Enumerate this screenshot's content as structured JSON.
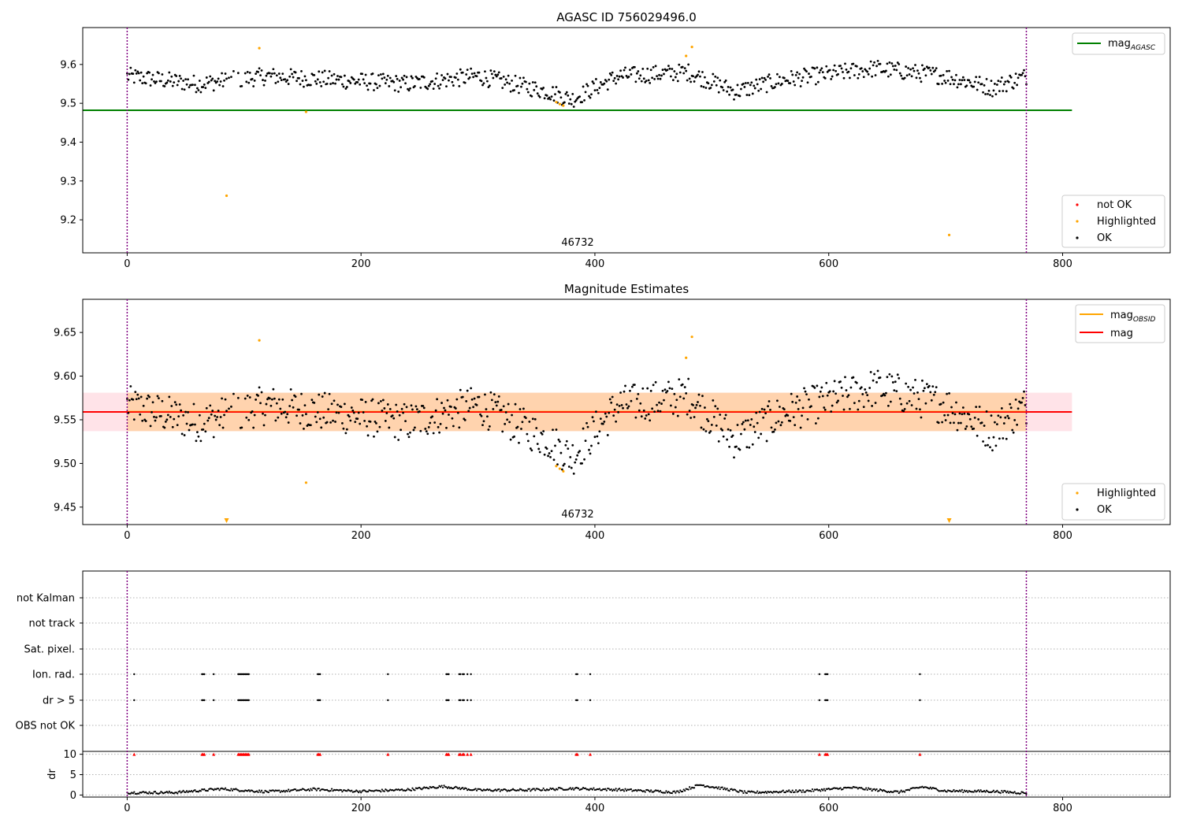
{
  "figure": {
    "agasc_id": "756029496.0",
    "note": "Three stacked panels sharing an x axis (sample index)"
  },
  "chart_data": [
    {
      "type": "scatter",
      "title": "AGASC ID 756029496.0",
      "xlim": [
        -38,
        892
      ],
      "ylim": [
        9.115,
        9.695
      ],
      "xticks": [
        0,
        200,
        400,
        600,
        800
      ],
      "yticks": [
        9.2,
        9.3,
        9.4,
        9.5,
        9.6
      ],
      "grid": false,
      "annotation": "46732",
      "vlines": [
        0,
        769
      ],
      "hlines": [
        {
          "name": "mag_AGASC",
          "y": 9.482,
          "x": [
            -38,
            808
          ],
          "color": "#008000"
        }
      ],
      "highlighted": [
        {
          "x": 85,
          "y": 9.262
        },
        {
          "x": 113,
          "y": 9.642
        },
        {
          "x": 153,
          "y": 9.478
        },
        {
          "x": 367,
          "y": 9.503
        },
        {
          "x": 370,
          "y": 9.498
        },
        {
          "x": 373,
          "y": 9.494
        },
        {
          "x": 478,
          "y": 9.622
        },
        {
          "x": 483,
          "y": 9.645
        },
        {
          "x": 703,
          "y": 9.161
        }
      ],
      "ok_series_segments": [
        {
          "x": [
            0,
            60,
            120,
            180,
            240,
            300,
            360,
            380,
            420,
            480,
            520,
            560,
            640,
            700,
            740,
            769
          ],
          "y": [
            9.57,
            9.55,
            9.57,
            9.56,
            9.55,
            9.57,
            9.53,
            9.51,
            9.57,
            9.58,
            9.53,
            9.56,
            9.59,
            9.57,
            9.54,
            9.57
          ]
        }
      ],
      "legend": {
        "upper_right": [
          "mag_AGASC"
        ],
        "lower_right": [
          "not OK",
          "Highlighted",
          "OK"
        ]
      }
    },
    {
      "type": "scatter",
      "title": "Magnitude Estimates",
      "xlim": [
        -38,
        892
      ],
      "ylim": [
        9.43,
        9.688
      ],
      "xticks": [
        0,
        200,
        400,
        600,
        800
      ],
      "yticks": [
        9.45,
        9.5,
        9.55,
        9.6,
        9.65
      ],
      "grid": false,
      "annotation": "46732",
      "vlines": [
        0,
        769
      ],
      "mag": {
        "y": 9.559,
        "x": [
          -38,
          808
        ],
        "color": "#ff0000"
      },
      "mag_obsid": {
        "y": 9.559,
        "x": [
          0,
          769
        ],
        "color": "#ffa500"
      },
      "bands": [
        {
          "y": [
            9.537,
            9.581
          ],
          "x": [
            -38,
            808
          ],
          "color": "#ffc0cb",
          "opacity": 0.45
        },
        {
          "y": [
            9.537,
            9.581
          ],
          "x": [
            0,
            769
          ],
          "color": "#ffa500",
          "opacity": 0.25
        }
      ],
      "highlighted": [
        {
          "x": 113,
          "y": 9.641
        },
        {
          "x": 153,
          "y": 9.478
        },
        {
          "x": 367,
          "y": 9.497
        },
        {
          "x": 370,
          "y": 9.494
        },
        {
          "x": 373,
          "y": 9.491
        },
        {
          "x": 478,
          "y": 9.621
        },
        {
          "x": 483,
          "y": 9.645
        }
      ],
      "offscale_low": [
        85,
        703
      ],
      "legend": {
        "upper_right": [
          "mag_OBSID",
          "mag"
        ],
        "lower_right": [
          "Highlighted",
          "OK"
        ]
      }
    },
    {
      "type": "scatter",
      "title": "",
      "xlim": [
        -38,
        892
      ],
      "xticks": [
        0,
        200,
        400,
        600,
        800
      ],
      "categories": [
        "not Kalman",
        "not track",
        "Sat. pixel.",
        "Ion. rad.",
        "dr > 5",
        "OBS not OK"
      ],
      "flag_x": [
        6,
        64,
        65,
        66,
        74,
        95,
        96,
        97,
        98,
        99,
        100,
        101,
        102,
        103,
        104,
        163,
        164,
        165,
        223,
        273,
        274,
        275,
        284,
        285,
        287,
        288,
        291,
        294,
        384,
        385,
        396,
        592,
        597,
        598,
        599,
        678
      ],
      "flag_rows": [
        "Ion. rad.",
        "dr > 5"
      ],
      "vlines": [
        0,
        769
      ]
    },
    {
      "type": "scatter",
      "ylabel": "dr",
      "xlim": [
        -38,
        892
      ],
      "ylim": [
        -0.5,
        10.7
      ],
      "xticks": [
        0,
        200,
        400,
        600,
        800
      ],
      "yticks": [
        0,
        5,
        10
      ],
      "grid": true,
      "capped_value": 10,
      "dr_trend": {
        "x": [
          0,
          40,
          80,
          120,
          160,
          200,
          240,
          270,
          300,
          340,
          380,
          420,
          470,
          490,
          530,
          580,
          620,
          660,
          680,
          700,
          740,
          769
        ],
        "y": [
          0.6,
          0.6,
          1.5,
          0.8,
          1.4,
          0.9,
          1.3,
          2.1,
          1.2,
          1.2,
          1.6,
          1.3,
          0.7,
          2.5,
          0.6,
          1.0,
          1.8,
          0.7,
          2.0,
          1.0,
          0.9,
          0.5
        ]
      },
      "vlines": [
        0,
        769
      ]
    }
  ]
}
